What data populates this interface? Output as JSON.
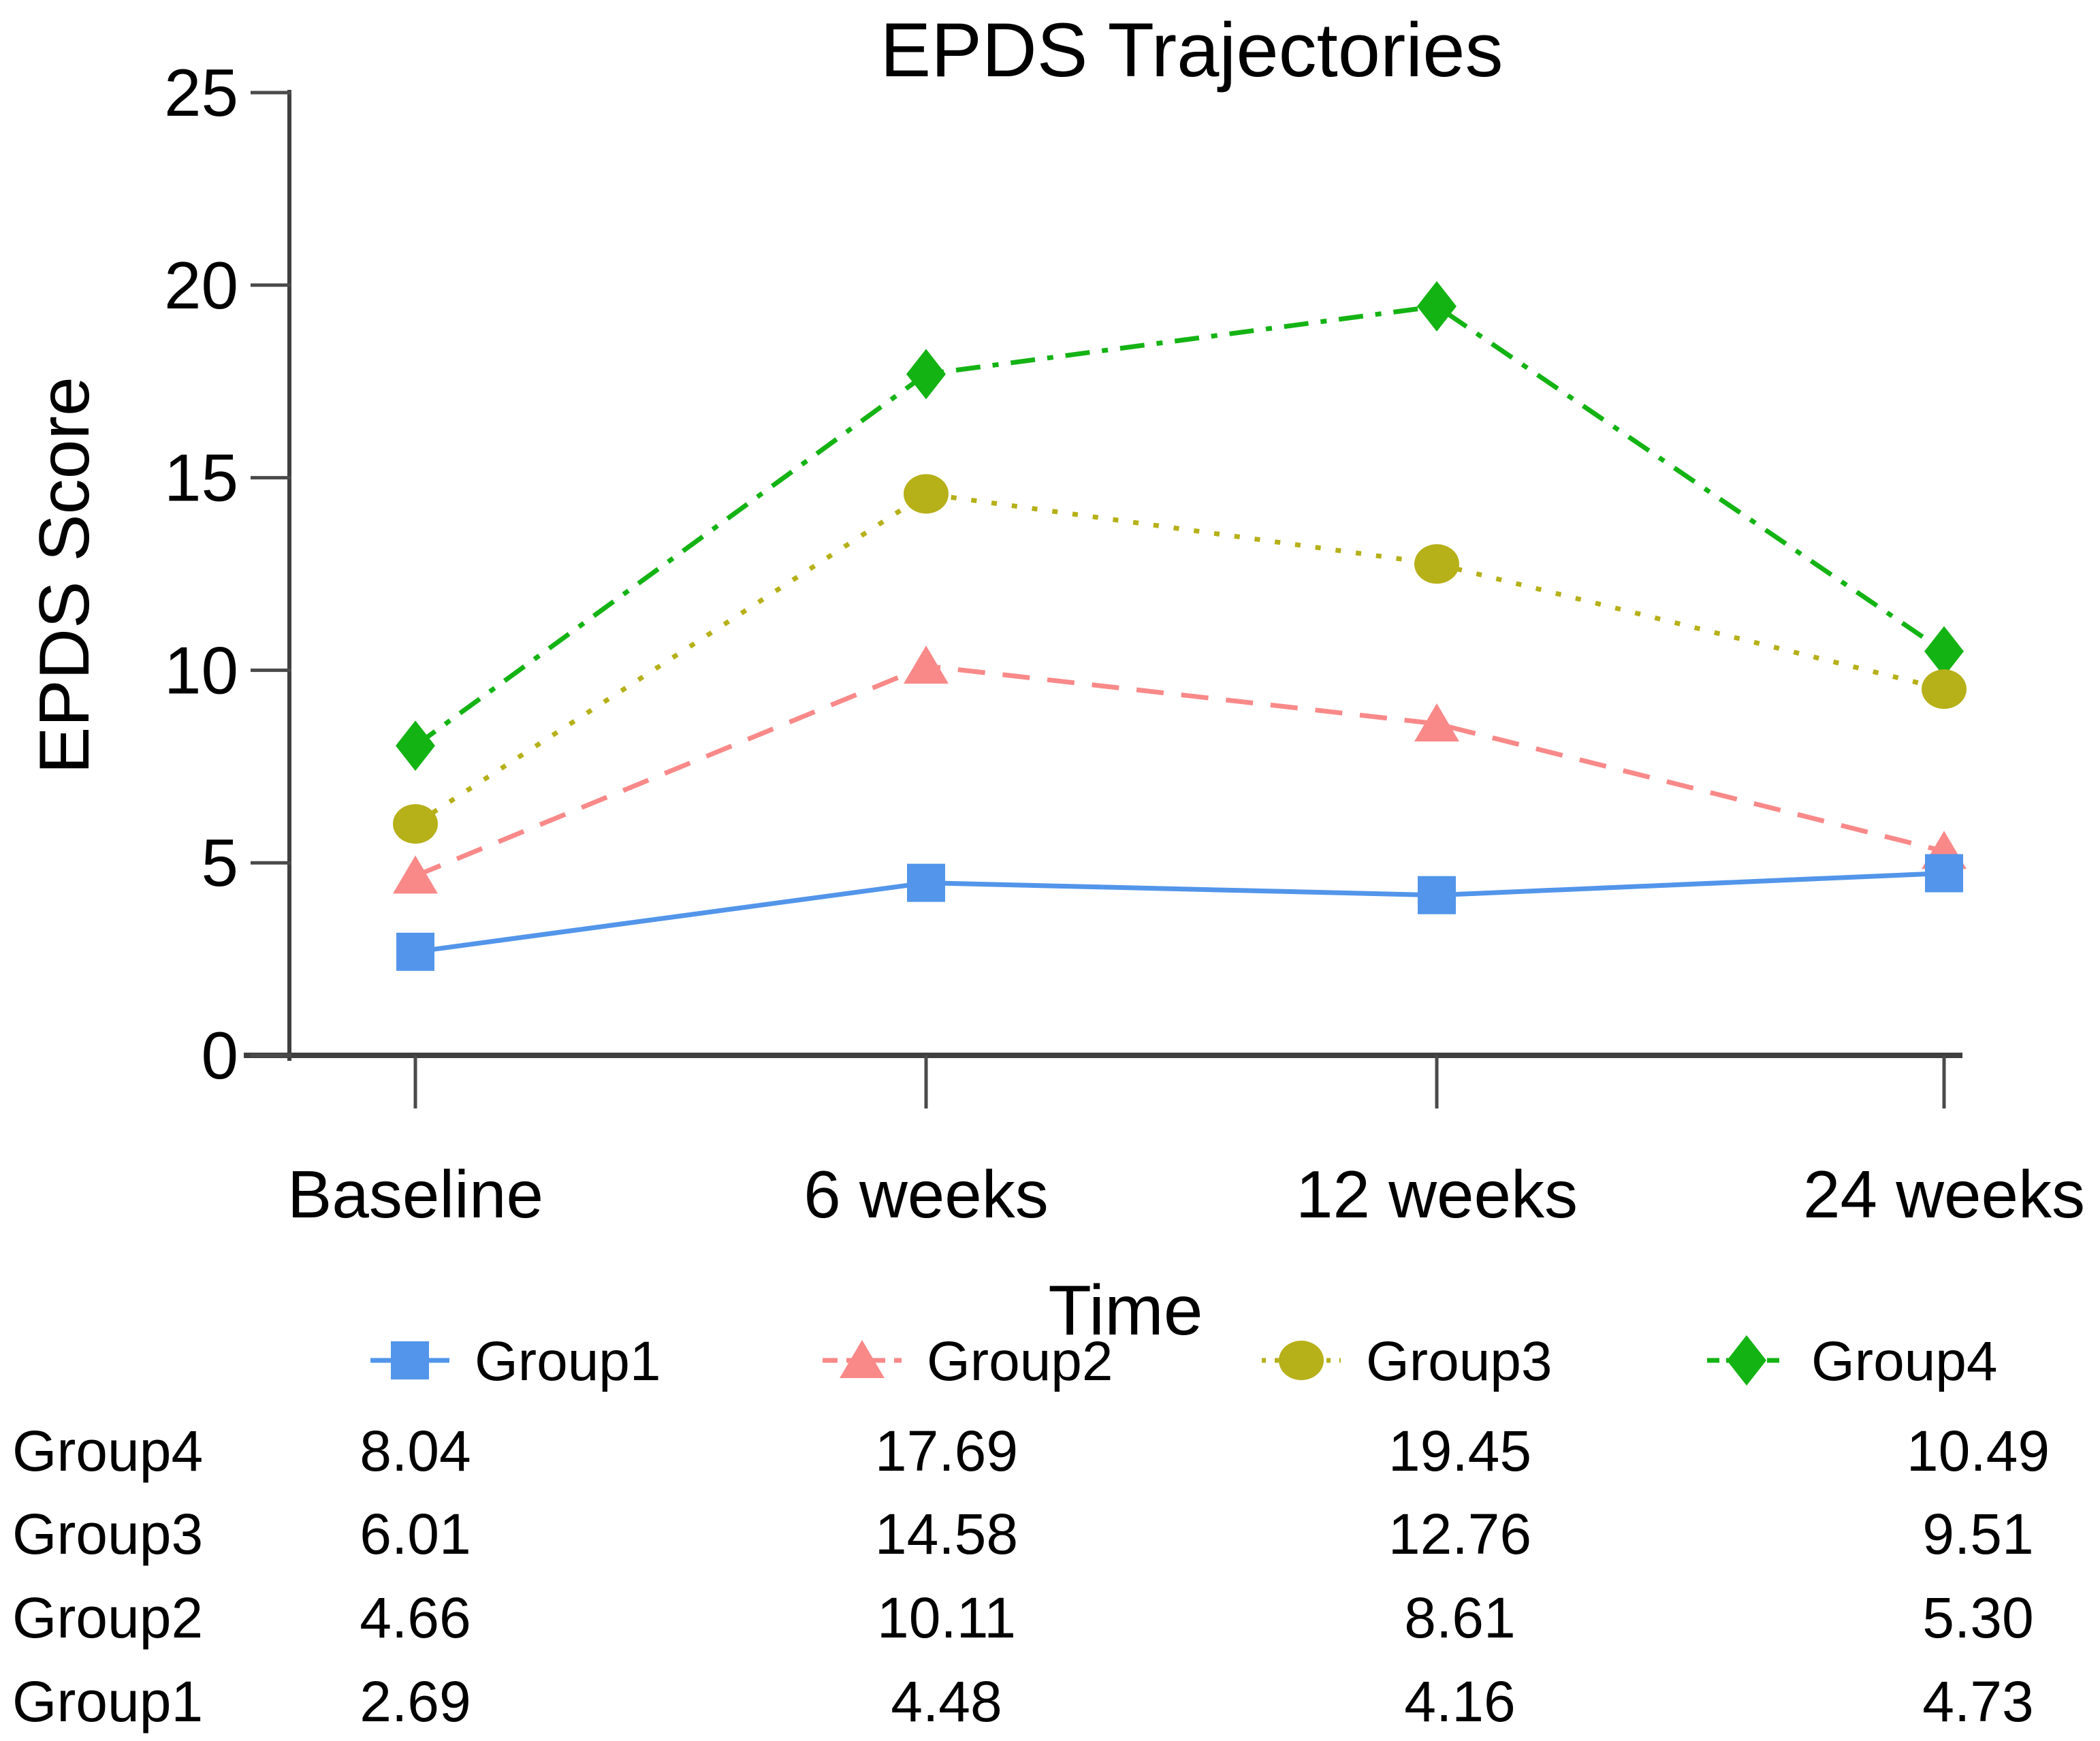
{
  "chart_data": {
    "type": "line",
    "title": "EPDS Trajectories",
    "xlabel": "Time",
    "ylabel": "EPDS Score",
    "categories": [
      "Baseline",
      "6 weeks",
      "12 weeks",
      "24 weeks"
    ],
    "ylim": [
      0,
      25
    ],
    "y_tick_labels": [
      "0",
      "5",
      "10",
      "15",
      "20",
      "25"
    ],
    "grid": false,
    "legend_position": "bottom",
    "series": [
      {
        "name": "Group1",
        "color": "#5295ea",
        "marker": "square",
        "line_style": "solid",
        "values": [
          2.69,
          4.48,
          4.16,
          4.73
        ],
        "display_values": [
          "2.69",
          "4.48",
          "4.16",
          "4.73"
        ]
      },
      {
        "name": "Group2",
        "color": "#f98989",
        "marker": "triangle",
        "line_style": "dashed",
        "values": [
          4.66,
          10.11,
          8.61,
          5.3
        ],
        "display_values": [
          "4.66",
          "10.11",
          "8.61",
          "5.30"
        ]
      },
      {
        "name": "Group3",
        "color": "#b6b019",
        "marker": "circle",
        "line_style": "dotted",
        "values": [
          6.01,
          14.58,
          12.76,
          9.51
        ],
        "display_values": [
          "6.01",
          "14.58",
          "12.76",
          "9.51"
        ]
      },
      {
        "name": "Group4",
        "color": "#14b314",
        "marker": "diamond",
        "line_style": "dashdot",
        "values": [
          8.04,
          17.69,
          19.45,
          10.49
        ],
        "display_values": [
          "8.04",
          "17.69",
          "19.45",
          "10.49"
        ]
      }
    ],
    "table_row_order": [
      "Group4",
      "Group3",
      "Group2",
      "Group1"
    ]
  }
}
